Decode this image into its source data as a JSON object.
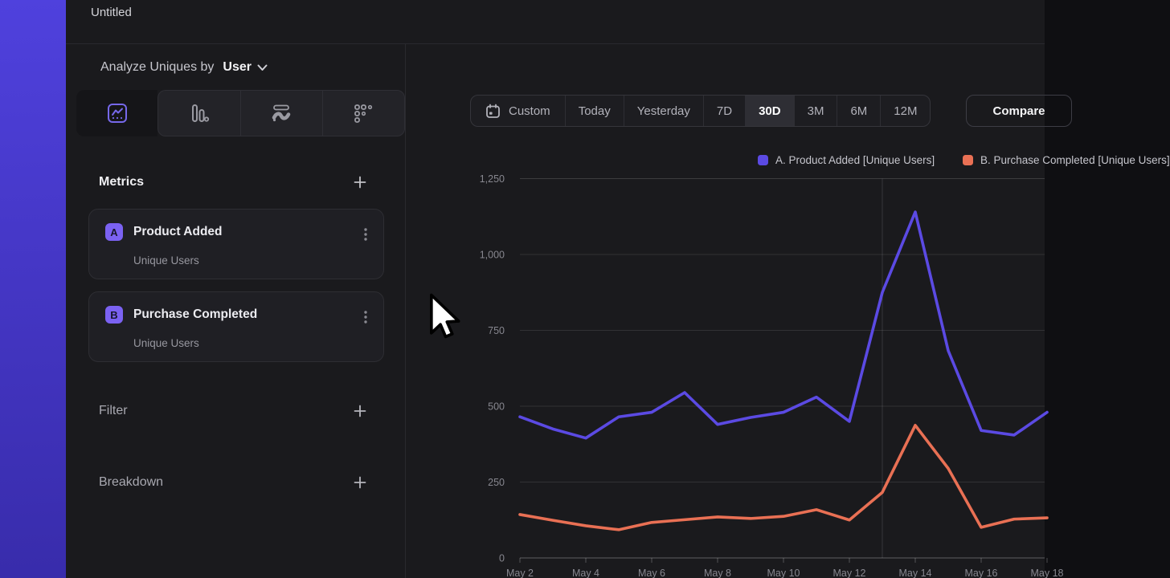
{
  "window": {
    "title": "Untitled"
  },
  "sidebar": {
    "analyze_label": "Analyze Uniques by",
    "analyze_value": "User",
    "chart_type_tabs": [
      {
        "name": "line-chart",
        "icon": "line-chart-icon",
        "selected": true
      },
      {
        "name": "bar-chart",
        "icon": "bar-chart-icon",
        "selected": false
      },
      {
        "name": "flows",
        "icon": "flow-icon",
        "selected": false
      },
      {
        "name": "retention",
        "icon": "dot-grid-icon",
        "selected": false
      }
    ],
    "metrics": {
      "title": "Metrics",
      "items": [
        {
          "badge": "A",
          "name": "Product Added",
          "measure": "Unique Users"
        },
        {
          "badge": "B",
          "name": "Purchase Completed",
          "measure": "Unique Users"
        }
      ]
    },
    "sections": [
      {
        "label": "Filter"
      },
      {
        "label": "Breakdown"
      }
    ]
  },
  "toolbar": {
    "ranges": [
      "Custom",
      "Today",
      "Yesterday",
      "7D",
      "30D",
      "3M",
      "6M",
      "12M"
    ],
    "active": "30D",
    "compare_label": "Compare"
  },
  "icons": {
    "custom_range": "calendar-icon",
    "analyze_dropdown": "chevron-down-icon",
    "add_section": "plus-icon",
    "metric_menu": "kebab-menu-icon",
    "pointer": "arrow-pointer-icon"
  },
  "colors": {
    "series_a": "#5b4ae3",
    "series_b": "#e97054",
    "badge": "#7b62f2",
    "panel_bg": "#1a1a1d",
    "strip_top": "#4f41dd",
    "strip_bottom": "#382cab"
  },
  "chart_data": {
    "type": "line",
    "title": "",
    "xlabel": "",
    "ylabel": "",
    "ylim": [
      0,
      1250
    ],
    "grid": "horizontal",
    "legend_position": "top-right",
    "categories": [
      "May 2",
      "May 3",
      "May 4",
      "May 5",
      "May 6",
      "May 7",
      "May 8",
      "May 9",
      "May 10",
      "May 11",
      "May 12",
      "May 13",
      "May 14",
      "May 15",
      "May 16",
      "May 17",
      "May 18"
    ],
    "series": [
      {
        "name": "A. Product Added [Unique Users]",
        "color": "#5b4ae3",
        "values": [
          465,
          425,
          395,
          465,
          480,
          545,
          440,
          463,
          480,
          530,
          450,
          875,
          1140,
          683,
          420,
          405,
          480
        ]
      },
      {
        "name": "B. Purchase Completed [Unique Users]",
        "color": "#e97054",
        "values": [
          143,
          124,
          106,
          93,
          117,
          126,
          135,
          130,
          137,
          159,
          125,
          216,
          437,
          295,
          101,
          128,
          132
        ]
      }
    ],
    "yticks": [
      0,
      250,
      500,
      750,
      1000,
      1250
    ],
    "ytick_labels": [
      "0",
      "250",
      "500",
      "750",
      "1,000",
      "1,250"
    ],
    "xtick_labels": [
      "May 2",
      "May 4",
      "May 6",
      "May 8",
      "May 10",
      "May 12",
      "May 14",
      "May 16",
      "May 18"
    ],
    "vline_category": "May 13"
  }
}
